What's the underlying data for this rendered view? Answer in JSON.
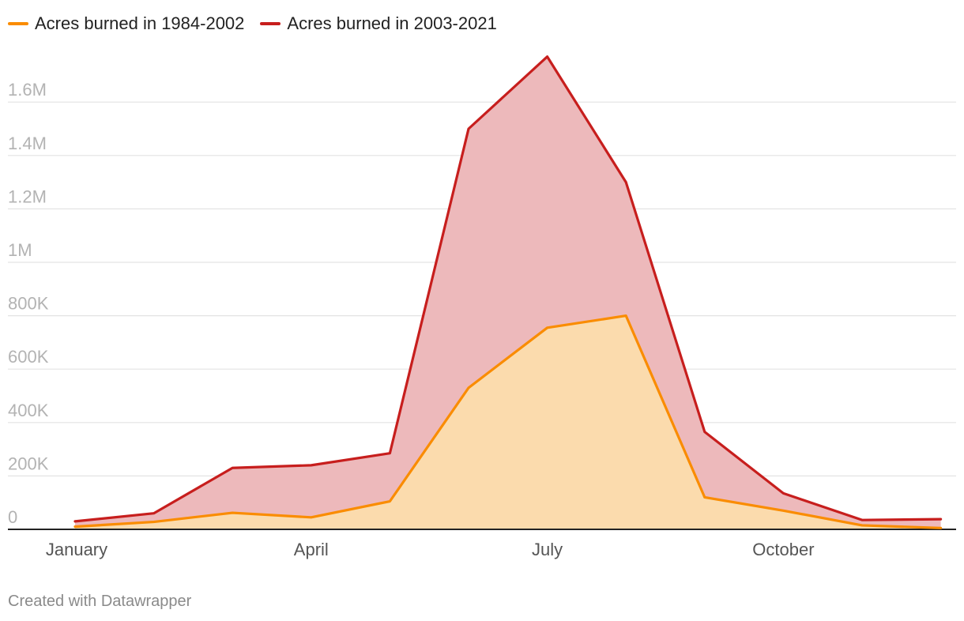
{
  "chart_data": {
    "type": "area",
    "title": "",
    "xlabel": "",
    "ylabel": "",
    "ylim": [
      0,
      1800000
    ],
    "x_tick_labels": [
      "January",
      "April",
      "July",
      "October"
    ],
    "y_tick_labels": [
      "0",
      "200K",
      "400K",
      "600K",
      "800K",
      "1M",
      "1.2M",
      "1.4M",
      "1.6M"
    ],
    "y_tick_values": [
      0,
      200000,
      400000,
      600000,
      800000,
      1000000,
      1200000,
      1400000,
      1600000
    ],
    "grid": true,
    "legend_position": "top-left",
    "categories": [
      "January",
      "February",
      "March",
      "April",
      "May",
      "June",
      "July",
      "August",
      "September",
      "October",
      "November",
      "December"
    ],
    "series": [
      {
        "name": "Acres burned in 2003-2021",
        "color": "#c71e1d",
        "fill": "#edb9bb",
        "values": [
          30000,
          60000,
          230000,
          240000,
          285000,
          1500000,
          1770000,
          1300000,
          365000,
          135000,
          35000,
          38000
        ]
      },
      {
        "name": "Acres burned in 1984-2002",
        "color": "#fa8c00",
        "fill": "#fbdbad",
        "values": [
          10000,
          28000,
          62000,
          45000,
          105000,
          530000,
          755000,
          800000,
          120000,
          70000,
          15000,
          5000
        ]
      }
    ]
  },
  "footer": {
    "credit": "Created with Datawrapper"
  }
}
